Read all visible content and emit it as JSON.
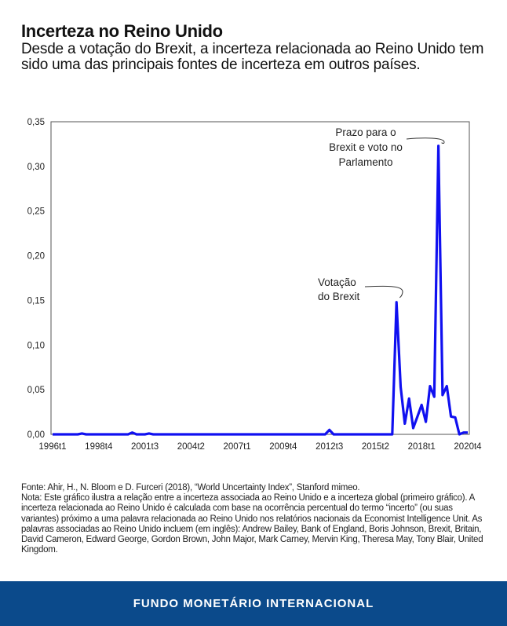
{
  "header": {
    "title": "Incerteza no Reino Unido",
    "subtitle": "Desde a votação do Brexit, a incerteza relacionada ao Reino Unido tem sido uma das principais fontes de incerteza em outros países."
  },
  "chart_data": {
    "type": "line",
    "title": "",
    "xlabel": "",
    "ylabel": "",
    "ylim": [
      0,
      0.35
    ],
    "yticks": [
      "0,00",
      "0,05",
      "0,10",
      "0,15",
      "0,20",
      "0,25",
      "0,30",
      "0,35"
    ],
    "ytick_values": [
      0,
      0.05,
      0.1,
      0.15,
      0.2,
      0.25,
      0.3,
      0.35
    ],
    "xticks": [
      "1996t1",
      "1998t4",
      "2001t3",
      "2004t2",
      "2007t1",
      "2009t4",
      "2012t3",
      "2015t2",
      "2018t1",
      "2020t4"
    ],
    "grid": false,
    "series_color": "#1010f0",
    "x": [
      "1996t1",
      "1996t2",
      "1996t3",
      "1996t4",
      "1997t1",
      "1997t2",
      "1997t3",
      "1997t4",
      "1998t1",
      "1998t2",
      "1998t3",
      "1998t4",
      "1999t1",
      "1999t2",
      "1999t3",
      "1999t4",
      "2000t1",
      "2000t2",
      "2000t3",
      "2000t4",
      "2001t1",
      "2001t2",
      "2001t3",
      "2001t4",
      "2002t1",
      "2002t2",
      "2002t3",
      "2002t4",
      "2003t1",
      "2003t2",
      "2003t3",
      "2003t4",
      "2004t1",
      "2004t2",
      "2004t3",
      "2004t4",
      "2005t1",
      "2005t2",
      "2005t3",
      "2005t4",
      "2006t1",
      "2006t2",
      "2006t3",
      "2006t4",
      "2007t1",
      "2007t2",
      "2007t3",
      "2007t4",
      "2008t1",
      "2008t2",
      "2008t3",
      "2008t4",
      "2009t1",
      "2009t2",
      "2009t3",
      "2009t4",
      "2010t1",
      "2010t2",
      "2010t3",
      "2010t4",
      "2011t1",
      "2011t2",
      "2011t3",
      "2011t4",
      "2012t1",
      "2012t2",
      "2012t3",
      "2012t4",
      "2013t1",
      "2013t2",
      "2013t3",
      "2013t4",
      "2014t1",
      "2014t2",
      "2014t3",
      "2014t4",
      "2015t1",
      "2015t2",
      "2015t3",
      "2015t4",
      "2016t1",
      "2016t2",
      "2016t3",
      "2016t4",
      "2017t1",
      "2017t2",
      "2017t3",
      "2017t4",
      "2018t1",
      "2018t2",
      "2018t3",
      "2018t4",
      "2019t1",
      "2019t2",
      "2019t3",
      "2019t4",
      "2020t1",
      "2020t2",
      "2020t3",
      "2020t4"
    ],
    "y": [
      0,
      0,
      0,
      0,
      0,
      0,
      0,
      0.001,
      0,
      0,
      0,
      0,
      0,
      0,
      0,
      0,
      0,
      0,
      0,
      0.002,
      0,
      0,
      0,
      0.001,
      0,
      0,
      0,
      0,
      0,
      0,
      0,
      0,
      0,
      0,
      0,
      0,
      0,
      0,
      0,
      0,
      0,
      0,
      0,
      0,
      0,
      0,
      0,
      0,
      0,
      0,
      0,
      0,
      0,
      0,
      0,
      0,
      0,
      0,
      0,
      0,
      0,
      0,
      0,
      0,
      0,
      0,
      0.005,
      0,
      0,
      0,
      0,
      0,
      0,
      0,
      0,
      0,
      0,
      0,
      0,
      0,
      0,
      0,
      0.148,
      0.053,
      0.012,
      0.04,
      0.007,
      0.02,
      0.033,
      0.014,
      0.054,
      0.042,
      0.323,
      0.044,
      0.054,
      0.02,
      0.019,
      0,
      0.002,
      0.002
    ],
    "annotations": [
      {
        "x": "2016t3",
        "lines": [
          "Votação",
          "do Brexit"
        ]
      },
      {
        "x": "2019t1",
        "lines": [
          "Prazo para o",
          "Brexit e voto no",
          "Parlamento"
        ]
      }
    ]
  },
  "notes": {
    "source": "Fonte: Ahir, H., N. Bloom e D. Furceri (2018), “World Uncertainty Index”, Stanford mimeo.",
    "note": "Nota: Este gráfico ilustra a relação entre a incerteza associada ao Reino Unido e a incerteza global (primeiro gráfico). A incerteza relacionada ao Reino Unido é calculada  com base na ocorrência percentual do termo “incerto” (ou suas variantes) próximo a uma palavra relacionada ao Reino Unido nos relatórios nacionais da Economist Intelligence Unit. As palavras associadas ao Reino Unido incluem (em inglês): Andrew Bailey, Bank of England, Boris Johnson, Brexit, Britain, David Cameron, Edward George, Gordon Brown, John Major, Mark Carney, Mervin King, Theresa May, Tony Blair, United Kingdom."
  },
  "footer": {
    "label": "FUNDO MONETÁRIO INTERNACIONAL"
  }
}
